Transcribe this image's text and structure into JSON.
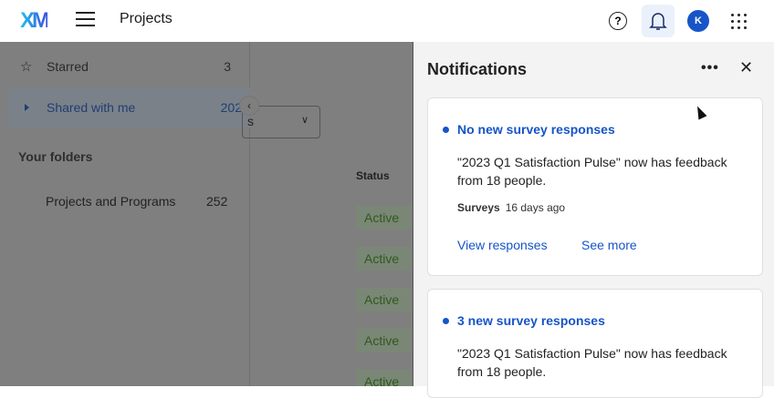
{
  "header": {
    "logo": "XM",
    "title": "Projects",
    "help_icon": "?",
    "avatar_initial": "K",
    "accent": "#1654c8"
  },
  "sidebar": {
    "items": [
      {
        "label": "Starred",
        "count": "3",
        "icon": "star-icon"
      },
      {
        "label": "Shared with me",
        "count": "202",
        "icon": "caret-right-icon"
      }
    ],
    "section_title": "Your folders",
    "folders": [
      {
        "label": "Projects and Programs",
        "count": "252"
      }
    ]
  },
  "main": {
    "dropdown_partial": "s",
    "status_header": "Status",
    "statuses": [
      "Active",
      "Active",
      "Active",
      "Active",
      "Active"
    ]
  },
  "notifications": {
    "title": "Notifications",
    "cards": [
      {
        "title": "No new survey responses",
        "body": "\"2023 Q1 Satisfaction Pulse\" now has feedback from 18 people.",
        "category": "Surveys",
        "time": "16 days ago",
        "actions": [
          "View responses",
          "See more"
        ]
      },
      {
        "title": "3 new survey responses",
        "body": "\"2023 Q1 Satisfaction Pulse\" now has feedback from 18 people."
      }
    ]
  }
}
